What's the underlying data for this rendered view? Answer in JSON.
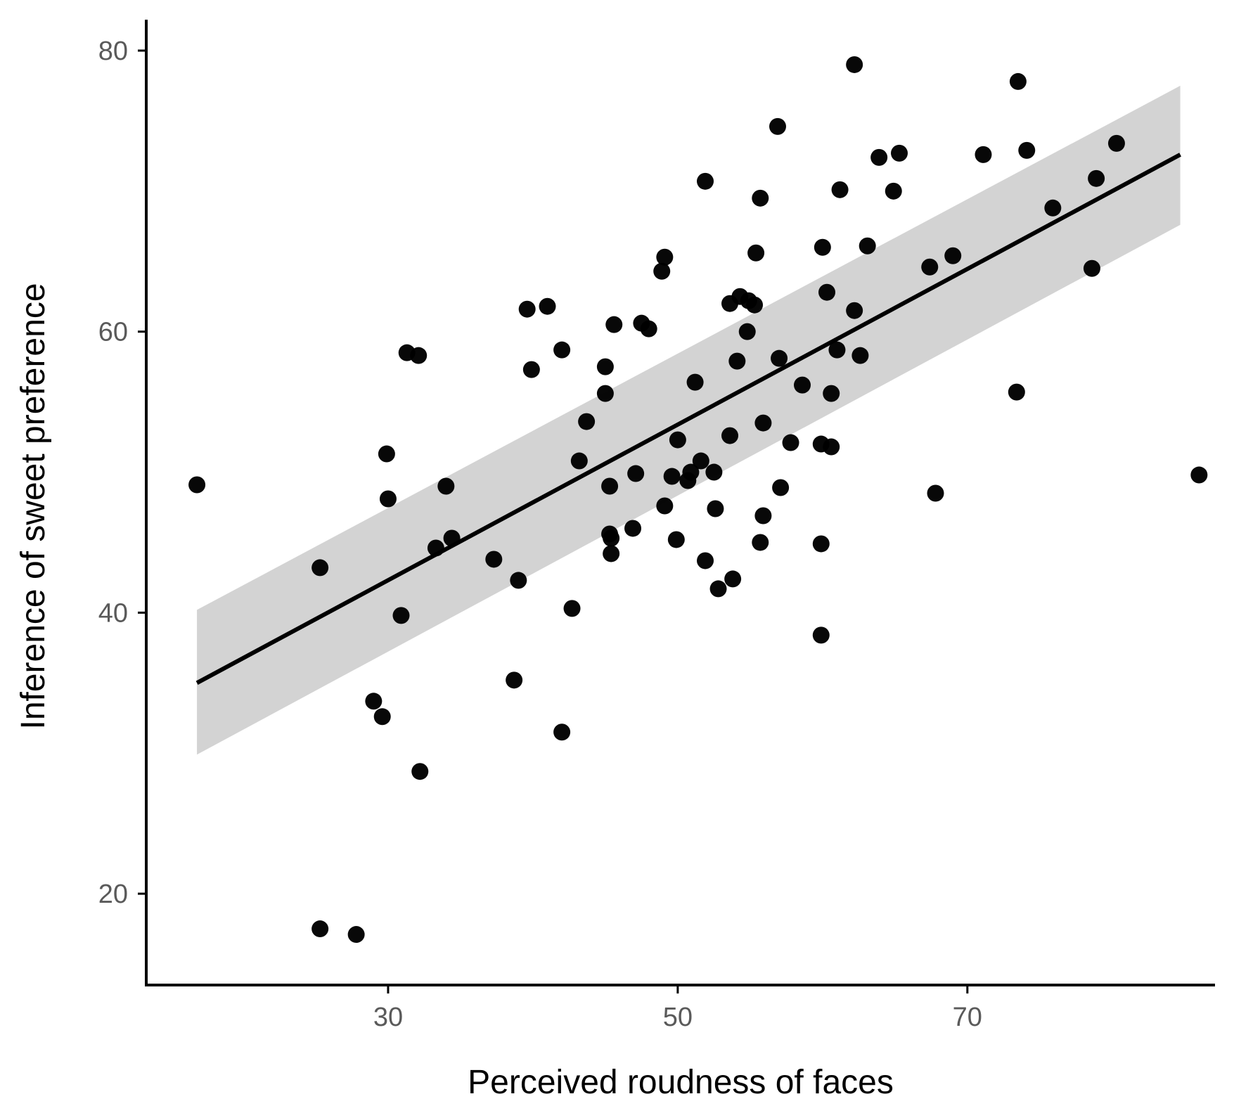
{
  "chart_data": {
    "type": "scatter",
    "title": "",
    "xlabel": "Perceived roudness of faces",
    "ylabel": "Inference of sweet preference",
    "xlim": [
      13.3,
      87.1
    ],
    "ylim": [
      13.5,
      82.2
    ],
    "x_ticks": [
      30,
      50,
      70
    ],
    "y_ticks": [
      20,
      40,
      60,
      80
    ],
    "x_tick_labels": [
      "30",
      "50",
      "70"
    ],
    "y_tick_labels": [
      "20",
      "40",
      "60",
      "80"
    ],
    "grid": false,
    "legend": "none",
    "colors": {
      "points": "#000000",
      "fit_line": "#000000",
      "confidence_band": "#d3d3d3",
      "axis": "#000000",
      "tick_label": "#5a5a5a"
    },
    "points": [
      [
        16.8,
        49.1
      ],
      [
        25.3,
        43.2
      ],
      [
        25.3,
        17.5
      ],
      [
        27.8,
        17.1
      ],
      [
        29.0,
        33.7
      ],
      [
        29.6,
        32.6
      ],
      [
        29.9,
        51.3
      ],
      [
        30.0,
        48.1
      ],
      [
        30.9,
        39.8
      ],
      [
        31.3,
        58.5
      ],
      [
        32.1,
        58.3
      ],
      [
        32.2,
        28.7
      ],
      [
        33.3,
        44.6
      ],
      [
        34.0,
        49.0
      ],
      [
        34.4,
        45.3
      ],
      [
        37.3,
        43.8
      ],
      [
        38.7,
        35.2
      ],
      [
        39.0,
        42.3
      ],
      [
        39.6,
        61.6
      ],
      [
        39.9,
        57.3
      ],
      [
        41.0,
        61.8
      ],
      [
        42.0,
        58.7
      ],
      [
        42.0,
        31.5
      ],
      [
        42.7,
        40.3
      ],
      [
        43.2,
        50.8
      ],
      [
        43.7,
        53.6
      ],
      [
        45.0,
        57.5
      ],
      [
        45.0,
        55.6
      ],
      [
        45.3,
        49.0
      ],
      [
        45.3,
        45.6
      ],
      [
        45.4,
        45.3
      ],
      [
        45.4,
        44.2
      ],
      [
        45.6,
        60.5
      ],
      [
        46.9,
        46.0
      ],
      [
        47.1,
        49.9
      ],
      [
        47.5,
        60.6
      ],
      [
        48.0,
        60.2
      ],
      [
        48.9,
        64.3
      ],
      [
        49.1,
        65.3
      ],
      [
        49.1,
        47.6
      ],
      [
        49.6,
        49.7
      ],
      [
        49.9,
        45.2
      ],
      [
        50.0,
        52.3
      ],
      [
        50.7,
        49.4
      ],
      [
        50.9,
        50.0
      ],
      [
        51.2,
        56.4
      ],
      [
        51.6,
        50.8
      ],
      [
        51.9,
        70.7
      ],
      [
        51.9,
        43.7
      ],
      [
        52.5,
        50.0
      ],
      [
        52.6,
        47.4
      ],
      [
        52.8,
        41.7
      ],
      [
        53.6,
        62.0
      ],
      [
        53.6,
        52.6
      ],
      [
        53.8,
        42.4
      ],
      [
        54.1,
        57.9
      ],
      [
        54.3,
        62.5
      ],
      [
        54.8,
        60.0
      ],
      [
        54.9,
        62.2
      ],
      [
        55.3,
        61.9
      ],
      [
        55.4,
        65.6
      ],
      [
        55.7,
        69.5
      ],
      [
        55.7,
        45.0
      ],
      [
        55.9,
        53.5
      ],
      [
        55.9,
        46.9
      ],
      [
        56.9,
        74.6
      ],
      [
        57.0,
        58.1
      ],
      [
        57.1,
        48.9
      ],
      [
        57.8,
        52.1
      ],
      [
        58.6,
        56.2
      ],
      [
        59.9,
        44.9
      ],
      [
        59.9,
        38.4
      ],
      [
        59.9,
        52.0
      ],
      [
        60.0,
        66.0
      ],
      [
        60.3,
        62.8
      ],
      [
        60.6,
        51.8
      ],
      [
        60.6,
        55.6
      ],
      [
        61.0,
        58.7
      ],
      [
        61.2,
        70.1
      ],
      [
        62.2,
        61.5
      ],
      [
        62.2,
        79.0
      ],
      [
        62.6,
        58.3
      ],
      [
        63.1,
        66.1
      ],
      [
        63.9,
        72.4
      ],
      [
        64.9,
        70.0
      ],
      [
        65.3,
        72.7
      ],
      [
        67.4,
        64.6
      ],
      [
        67.8,
        48.5
      ],
      [
        69.0,
        65.4
      ],
      [
        71.1,
        72.6
      ],
      [
        73.4,
        55.7
      ],
      [
        73.5,
        77.8
      ],
      [
        74.1,
        72.9
      ],
      [
        75.9,
        68.8
      ],
      [
        78.6,
        64.5
      ],
      [
        78.9,
        70.9
      ],
      [
        80.3,
        73.4
      ],
      [
        86.0,
        49.8
      ]
    ],
    "fit_line": {
      "x": [
        16.8,
        84.7
      ],
      "y": [
        35.0,
        72.6
      ]
    },
    "confidence_band": {
      "x": [
        16.8,
        84.7
      ],
      "upper": [
        40.2,
        77.5
      ],
      "lower": [
        29.9,
        67.6
      ]
    }
  }
}
